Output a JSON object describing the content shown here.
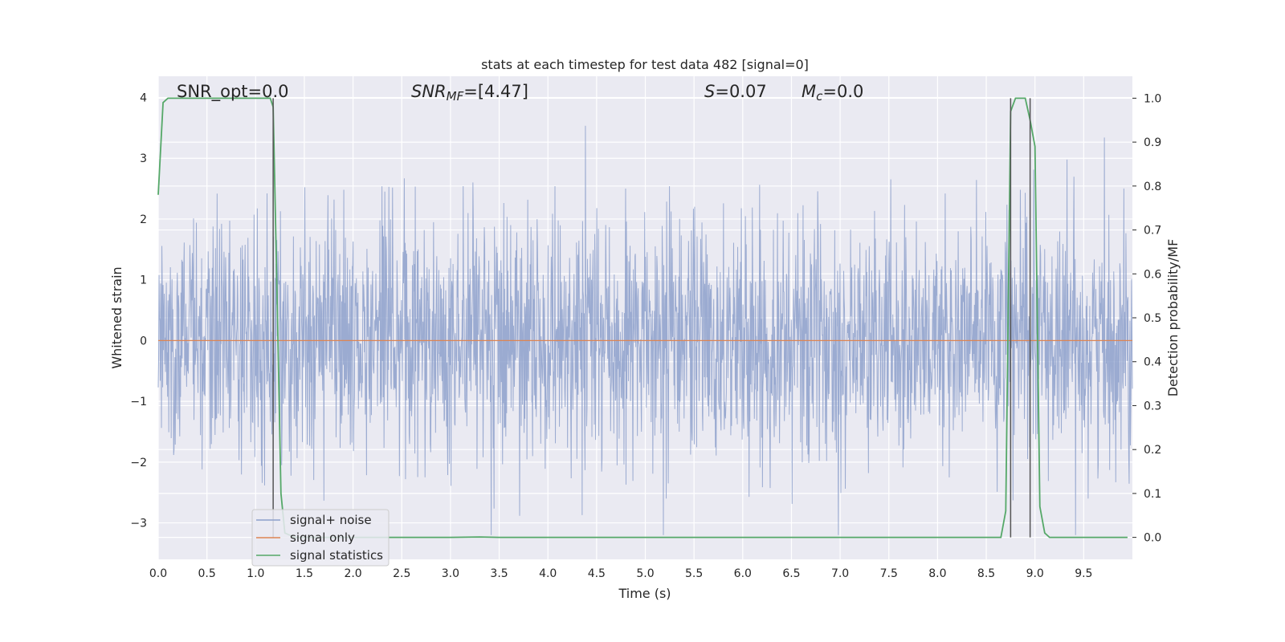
{
  "chart_data": {
    "type": "line",
    "title": "stats at each timestep for test data 482 [signal=0]",
    "xlabel": "Time (s)",
    "ylabel_left": "Whitened strain",
    "ylabel_right": "Detection probability/MF",
    "xlim": [
      0,
      10
    ],
    "ylim_left": [
      -3.6,
      4.35
    ],
    "ylim_right": [
      -0.05,
      1.05
    ],
    "xticks": [
      "0.0",
      "0.5",
      "1.0",
      "1.5",
      "2.0",
      "2.5",
      "3.0",
      "3.5",
      "4.0",
      "4.5",
      "5.0",
      "5.5",
      "6.0",
      "6.5",
      "7.0",
      "7.5",
      "8.0",
      "8.5",
      "9.0",
      "9.5"
    ],
    "yticks_left": [
      -3,
      -2,
      -1,
      0,
      1,
      2,
      3,
      4
    ],
    "yticks_left_labels": [
      "−3",
      "−2",
      "−1",
      "0",
      "1",
      "2",
      "3",
      "4"
    ],
    "yticks_right": [
      "0.0",
      "0.1",
      "0.2",
      "0.3",
      "0.4",
      "0.5",
      "0.6",
      "0.7",
      "0.8",
      "0.9",
      "1.0"
    ],
    "grid": true,
    "legend_position": "lower-left",
    "annotations": {
      "snr_opt": "SNR_opt=0.0",
      "snr_mf_label": "SNR",
      "snr_mf_sub": "MF",
      "snr_mf_value": "=[4.47]",
      "s_label": "S",
      "s_value": "=0.07",
      "mc_label": "M",
      "mc_sub": "c",
      "mc_value": "=0.0"
    },
    "series": [
      {
        "name": "signal+ noise",
        "color": "#8da0cb",
        "approx_amplitude_std": 1.0,
        "approx_range": [
          -3.2,
          4.0
        ]
      },
      {
        "name": "signal only",
        "color": "#dd8452",
        "constant_value": 0.0
      },
      {
        "name": "signal statistics",
        "color": "#55a868",
        "x": [
          0.0,
          0.05,
          0.1,
          0.15,
          0.2,
          0.3,
          0.5,
          0.8,
          1.0,
          1.1,
          1.15,
          1.18,
          1.22,
          1.26,
          1.3,
          1.4,
          2.0,
          3.0,
          3.3,
          3.5,
          4.0,
          5.0,
          6.0,
          7.0,
          8.0,
          8.65,
          8.7,
          8.75,
          8.8,
          8.85,
          8.9,
          8.95,
          9.0,
          9.05,
          9.1,
          9.15,
          9.2,
          9.3,
          9.5,
          9.8,
          9.95
        ],
        "y": [
          0.78,
          0.99,
          1.0,
          1.0,
          1.0,
          1.0,
          1.0,
          1.0,
          1.0,
          1.0,
          1.0,
          0.98,
          0.55,
          0.1,
          0.01,
          0.0,
          0.0,
          0.0,
          0.001,
          0.0,
          0.0,
          0.0,
          0.0,
          0.0,
          0.0,
          0.0,
          0.06,
          0.97,
          1.0,
          1.0,
          1.0,
          0.95,
          0.89,
          0.07,
          0.01,
          0.0,
          0.0,
          0.0,
          0.0,
          0.0,
          0.0
        ]
      }
    ],
    "vlines": [
      1.18,
      8.75,
      8.95
    ]
  }
}
